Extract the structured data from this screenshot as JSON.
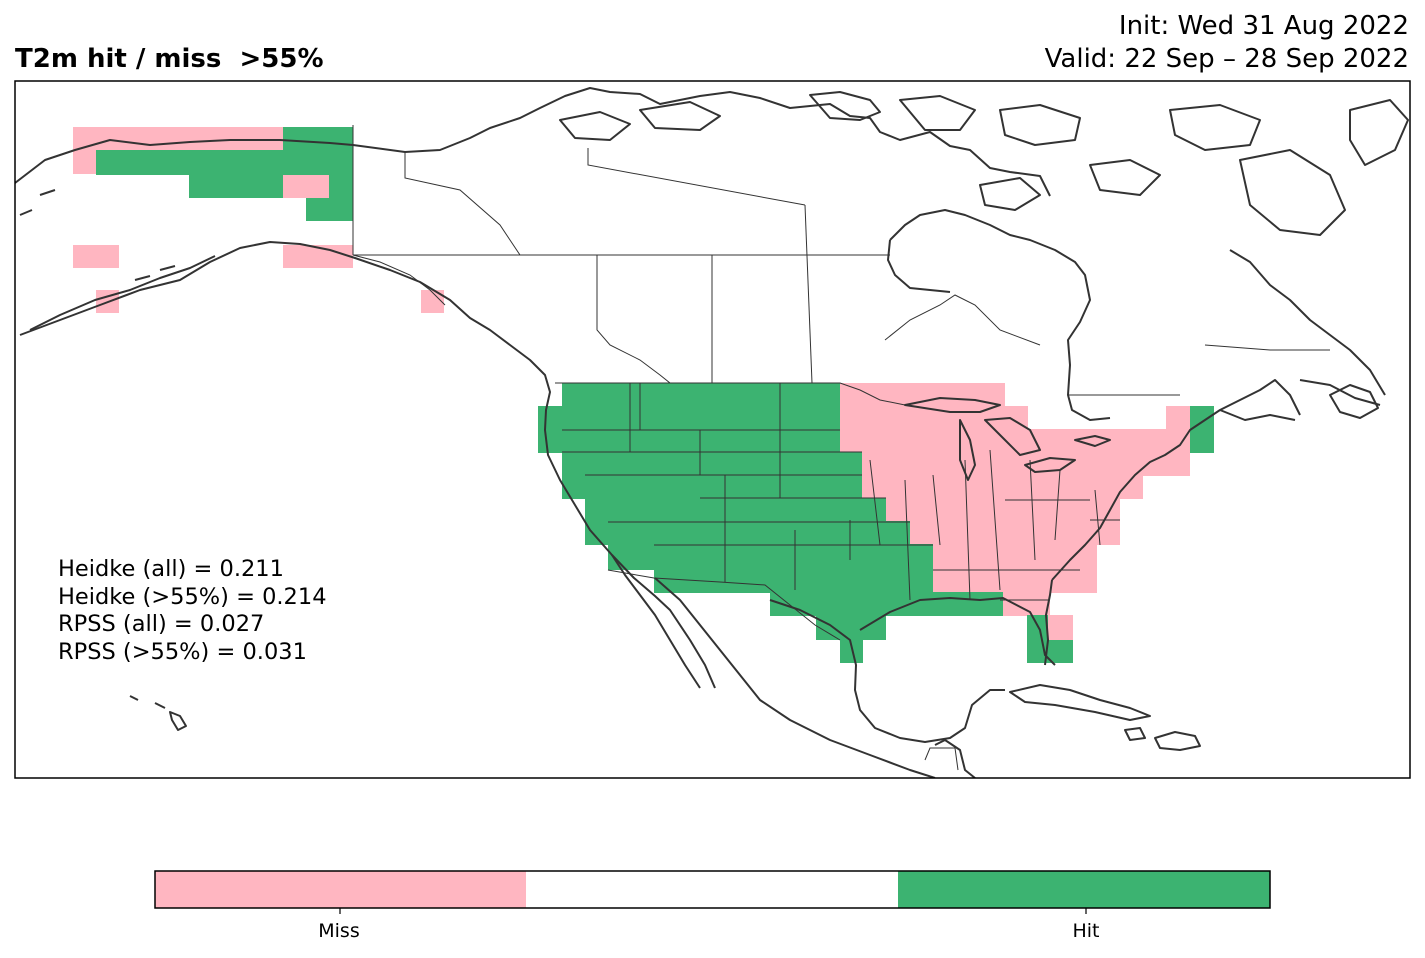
{
  "title": {
    "left": "T2m hit / miss  >55%",
    "init": "Init: Wed 31 Aug 2022",
    "valid": "Valid: 22 Sep – 28 Sep 2022"
  },
  "stats": [
    "Heidke (all) = 0.211",
    "Heidke (>55%) = 0.214",
    "RPSS (all) = 0.027",
    "RPSS (>55%) = 0.031"
  ],
  "colors": {
    "miss": "#ffb6c1",
    "hit": "#3cb371",
    "neutral": "#ffffff",
    "coast": "#333333"
  },
  "colorbar": {
    "labels": [
      "Miss",
      "Hit"
    ]
  }
}
